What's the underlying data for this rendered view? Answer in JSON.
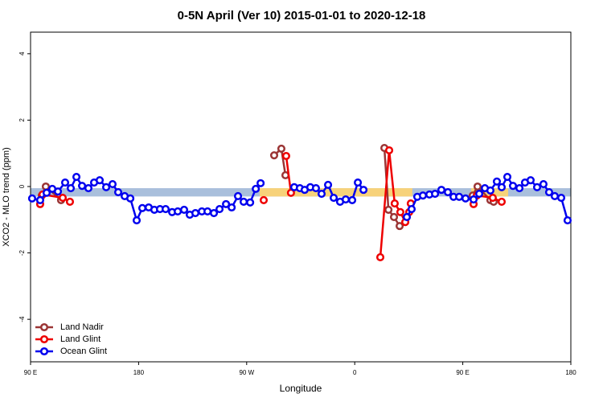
{
  "chart_data": {
    "type": "line",
    "title": "0-5N April (Ver 10)   2015-01-01 to 2020-12-18",
    "x_label": "Longitude",
    "y_label": "XCO2 - MLO trend (ppm)",
    "xlim": [
      90,
      540
    ],
    "ylim": [
      -5.28,
      4.65
    ],
    "xticks": [
      {
        "value": 90,
        "label": "90 E"
      },
      180,
      {
        "value": 270,
        "label": "90 W"
      },
      {
        "value": 360,
        "label": "0"
      },
      {
        "value": 450,
        "label": "90 E"
      },
      {
        "value": 540,
        "label": "180"
      }
    ],
    "yticks": [
      -4,
      -2,
      0,
      2,
      4
    ],
    "legend": "bottom-left",
    "band": {
      "ymin": -0.3,
      "ymax": -0.05,
      "color": "#a9bfdc",
      "highlight_color": "#f7d27a",
      "highlight_spans": [
        [
          280.8,
          408
        ],
        [
          457,
          487.8
        ]
      ]
    },
    "series": [
      {
        "name": "Land Nadir",
        "color": "#9b3535",
        "x": [
          99.4,
          102.7,
          115.4,
          null,
          292.9,
          298.9,
          302.3,
          null,
          384.7,
          388.1,
          392.7,
          397.4,
          null,
          458.3,
          462.3,
          473.0,
          475.7
        ],
        "values": [
          -0.27,
          0,
          -0.41,
          null,
          0.94,
          1.14,
          0.34,
          null,
          1.16,
          -0.7,
          -0.92,
          -1.19,
          null,
          -0.27,
          0,
          -0.41,
          -0.46
        ]
      },
      {
        "name": "Land Glint",
        "color": "#ee0000",
        "x": [
          98.0,
          100.0,
          116.8,
          122.8,
          null,
          284.2,
          null,
          302.9,
          306.9,
          null,
          381.3,
          388.7,
          393.3,
          398.0,
          402.1,
          405.4,
          406.7,
          null,
          459.0,
          461.7,
          475.0,
          482.4
        ],
        "values": [
          -0.53,
          -0.24,
          -0.34,
          -0.46,
          null,
          -0.41,
          null,
          0.92,
          -0.19,
          null,
          -2.13,
          1.09,
          -0.51,
          -0.77,
          -1.07,
          -0.77,
          -0.51,
          null,
          -0.53,
          -0.27,
          -0.34,
          -0.46
        ]
      },
      {
        "name": "Ocean Glint",
        "color": "#0000ee",
        "x": [
          91.3,
          98.0,
          103.4,
          108.1,
          112.8,
          118.8,
          123.5,
          128.2,
          132.9,
          138.2,
          142.9,
          147.6,
          153.0,
          158.3,
          163.0,
          168.4,
          173.1,
          178.4,
          183.1,
          188.4,
          193.1,
          197.8,
          202.5,
          207.9,
          212.6,
          217.9,
          222.6,
          227.3,
          232.7,
          237.4,
          242.7,
          247.4,
          252.8,
          257.5,
          262.8,
          267.5,
          272.9,
          277.6,
          281.6,
          null,
          309.6,
          314.3,
          318.3,
          323.0,
          327.7,
          332.4,
          337.8,
          342.5,
          347.8,
          352.5,
          357.9,
          362.6,
          367.3,
          null,
          403.4,
          407.4,
          412.1,
          416.8,
          422.2,
          426.9,
          432.2,
          437.6,
          442.3,
          447.0,
          452.3,
          459.0,
          463.7,
          468.4,
          473.0,
          478.4,
          482.4,
          487.1,
          491.8,
          497.2,
          501.8,
          506.5,
          511.9,
          517.2,
          521.9,
          526.6,
          532.0,
          537.3
        ],
        "values": [
          -0.36,
          -0.41,
          -0.19,
          -0.07,
          -0.15,
          0.12,
          -0.05,
          0.29,
          0.02,
          -0.05,
          0.12,
          0.19,
          -0.02,
          0.07,
          -0.17,
          -0.29,
          -0.36,
          -1.02,
          -0.65,
          -0.63,
          -0.7,
          -0.68,
          -0.68,
          -0.77,
          -0.75,
          -0.7,
          -0.85,
          -0.8,
          -0.75,
          -0.75,
          -0.8,
          -0.68,
          -0.53,
          -0.63,
          -0.29,
          -0.46,
          -0.48,
          -0.07,
          0.1,
          null,
          -0.02,
          -0.05,
          -0.1,
          -0.02,
          -0.05,
          -0.22,
          0.05,
          -0.34,
          -0.46,
          -0.39,
          -0.41,
          0.12,
          -0.1,
          null,
          -0.92,
          -0.68,
          -0.31,
          -0.27,
          -0.24,
          -0.22,
          -0.1,
          -0.17,
          -0.31,
          -0.31,
          -0.36,
          -0.39,
          -0.22,
          -0.05,
          -0.12,
          0.15,
          -0.02,
          0.29,
          0.02,
          -0.05,
          0.12,
          0.19,
          -0.02,
          0.07,
          -0.17,
          -0.29,
          -0.34,
          -1.02
        ]
      }
    ]
  }
}
